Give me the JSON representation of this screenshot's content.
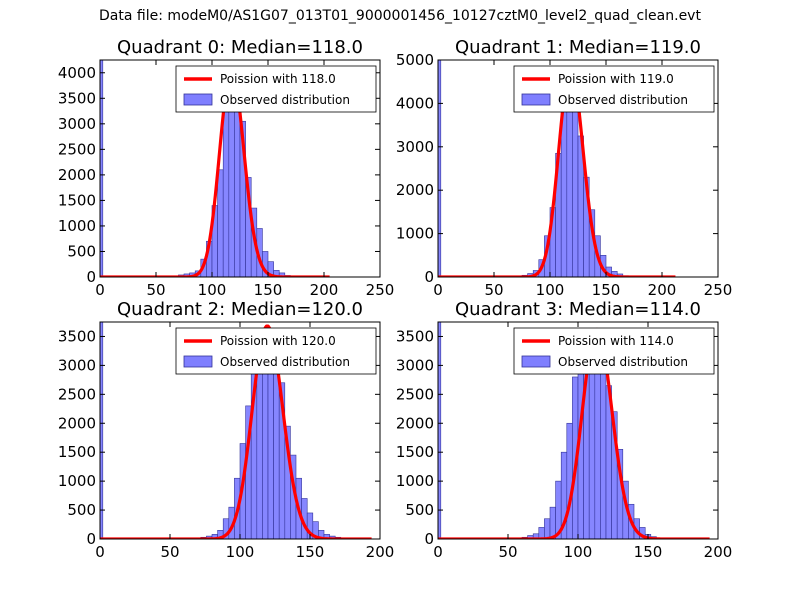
{
  "figure_title": "Data file: modeM0/AS1G07_013T01_9000001456_10127cztM0_level2_quad_clean.evt",
  "colors": {
    "poisson": "#ff0000",
    "bars": "#7f7fff",
    "bar_edge": "#333399",
    "frame": "#000000"
  },
  "chart_data": [
    {
      "type": "bar",
      "title": "Quadrant 0: Median=118.0",
      "xlim": [
        0,
        250
      ],
      "ylim": [
        0,
        4250
      ],
      "xticks": [
        "0",
        "50",
        "100",
        "150",
        "200",
        "250"
      ],
      "yticks": [
        "0",
        "500",
        "1000",
        "1500",
        "2000",
        "2500",
        "3000",
        "3500",
        "4000"
      ],
      "xtick_values": [
        0,
        50,
        100,
        150,
        200,
        250
      ],
      "ytick_values": [
        0,
        500,
        1000,
        1500,
        2000,
        2500,
        3000,
        3500,
        4000
      ],
      "bin_width": 5,
      "zero_bin_count": 4250,
      "bins": [
        [
          65,
          20
        ],
        [
          70,
          40
        ],
        [
          75,
          60
        ],
        [
          80,
          80
        ],
        [
          85,
          120
        ],
        [
          90,
          350
        ],
        [
          95,
          700
        ],
        [
          100,
          1400
        ],
        [
          105,
          2100
        ],
        [
          110,
          3450
        ],
        [
          115,
          3900
        ],
        [
          120,
          3750
        ],
        [
          125,
          3050
        ],
        [
          130,
          1950
        ],
        [
          135,
          1350
        ],
        [
          140,
          950
        ],
        [
          145,
          500
        ],
        [
          150,
          300
        ],
        [
          155,
          130
        ],
        [
          160,
          80
        ],
        [
          165,
          30
        ],
        [
          170,
          20
        ],
        [
          175,
          10
        ]
      ],
      "poisson_mean": 118.0,
      "poisson_peak": 4050,
      "curve_range": [
        0,
        205
      ],
      "legend": {
        "curve_label": "Poission with 118.0",
        "bar_label": "Observed distribution",
        "position": "upper right"
      }
    },
    {
      "type": "bar",
      "title": "Quadrant 1: Median=119.0",
      "xlim": [
        0,
        250
      ],
      "ylim": [
        0,
        5000
      ],
      "xticks": [
        "0",
        "50",
        "100",
        "150",
        "200",
        "250"
      ],
      "yticks": [
        "0",
        "1000",
        "2000",
        "3000",
        "4000",
        "5000"
      ],
      "xtick_values": [
        0,
        50,
        100,
        150,
        200,
        250
      ],
      "ytick_values": [
        0,
        1000,
        2000,
        3000,
        4000,
        5000
      ],
      "bin_width": 5,
      "zero_bin_count": 5000,
      "bins": [
        [
          70,
          20
        ],
        [
          75,
          40
        ],
        [
          80,
          80
        ],
        [
          85,
          150
        ],
        [
          90,
          400
        ],
        [
          95,
          950
        ],
        [
          100,
          1600
        ],
        [
          105,
          2850
        ],
        [
          110,
          4000
        ],
        [
          115,
          4350
        ],
        [
          120,
          4300
        ],
        [
          125,
          3250
        ],
        [
          130,
          2300
        ],
        [
          135,
          1550
        ],
        [
          140,
          950
        ],
        [
          145,
          500
        ],
        [
          150,
          230
        ],
        [
          155,
          130
        ],
        [
          160,
          70
        ],
        [
          165,
          30
        ],
        [
          170,
          20
        ],
        [
          175,
          10
        ]
      ],
      "poisson_mean": 119.0,
      "poisson_peak": 4800,
      "curve_range": [
        0,
        212
      ],
      "legend": {
        "curve_label": "Poission with 119.0",
        "bar_label": "Observed distribution",
        "position": "upper right"
      }
    },
    {
      "type": "bar",
      "title": "Quadrant 2: Median=120.0",
      "xlim": [
        0,
        200
      ],
      "ylim": [
        0,
        3750
      ],
      "xticks": [
        "0",
        "50",
        "100",
        "150",
        "200"
      ],
      "yticks": [
        "0",
        "500",
        "1000",
        "1500",
        "2000",
        "2500",
        "3000",
        "3500"
      ],
      "xtick_values": [
        0,
        50,
        100,
        150,
        200
      ],
      "ytick_values": [
        0,
        500,
        1000,
        1500,
        2000,
        2500,
        3000,
        3500
      ],
      "bin_width": 4,
      "zero_bin_count": 3750,
      "bins": [
        [
          68,
          20
        ],
        [
          72,
          30
        ],
        [
          76,
          50
        ],
        [
          80,
          80
        ],
        [
          84,
          150
        ],
        [
          88,
          350
        ],
        [
          92,
          550
        ],
        [
          96,
          1050
        ],
        [
          100,
          1650
        ],
        [
          104,
          2300
        ],
        [
          108,
          3050
        ],
        [
          112,
          3400
        ],
        [
          116,
          3500
        ],
        [
          120,
          3500
        ],
        [
          124,
          3100
        ],
        [
          128,
          2700
        ],
        [
          132,
          1950
        ],
        [
          136,
          1450
        ],
        [
          140,
          1050
        ],
        [
          144,
          700
        ],
        [
          148,
          450
        ],
        [
          152,
          300
        ],
        [
          156,
          150
        ],
        [
          160,
          80
        ],
        [
          164,
          50
        ],
        [
          168,
          30
        ],
        [
          172,
          20
        ],
        [
          176,
          10
        ]
      ],
      "poisson_mean": 120.0,
      "poisson_peak": 3680,
      "curve_range": [
        0,
        194
      ],
      "legend": {
        "curve_label": "Poission with 120.0",
        "bar_label": "Observed distribution",
        "position": "upper right"
      }
    },
    {
      "type": "bar",
      "title": "Quadrant 3: Median=114.0",
      "xlim": [
        0,
        200
      ],
      "ylim": [
        0,
        3750
      ],
      "xticks": [
        "0",
        "50",
        "100",
        "150",
        "200"
      ],
      "yticks": [
        "0",
        "500",
        "1000",
        "1500",
        "2000",
        "2500",
        "3000",
        "3500"
      ],
      "xtick_values": [
        0,
        50,
        100,
        150,
        200
      ],
      "ytick_values": [
        0,
        500,
        1000,
        1500,
        2000,
        2500,
        3000,
        3500
      ],
      "bin_width": 4,
      "zero_bin_count": 3750,
      "bins": [
        [
          56,
          20
        ],
        [
          60,
          30
        ],
        [
          64,
          60
        ],
        [
          68,
          90
        ],
        [
          72,
          200
        ],
        [
          76,
          350
        ],
        [
          80,
          550
        ],
        [
          84,
          1000
        ],
        [
          88,
          1500
        ],
        [
          92,
          2000
        ],
        [
          96,
          2800
        ],
        [
          100,
          3350
        ],
        [
          104,
          3550
        ],
        [
          108,
          3600
        ],
        [
          112,
          3500
        ],
        [
          116,
          3200
        ],
        [
          120,
          2650
        ],
        [
          124,
          2200
        ],
        [
          128,
          1550
        ],
        [
          132,
          1000
        ],
        [
          136,
          600
        ],
        [
          140,
          350
        ],
        [
          144,
          200
        ],
        [
          148,
          80
        ],
        [
          152,
          40
        ],
        [
          156,
          20
        ],
        [
          160,
          10
        ]
      ],
      "poisson_mean": 114.0,
      "poisson_peak": 3620,
      "curve_range": [
        0,
        194
      ],
      "legend": {
        "curve_label": "Poission with 114.0",
        "bar_label": "Observed distribution",
        "position": "upper right"
      }
    }
  ]
}
